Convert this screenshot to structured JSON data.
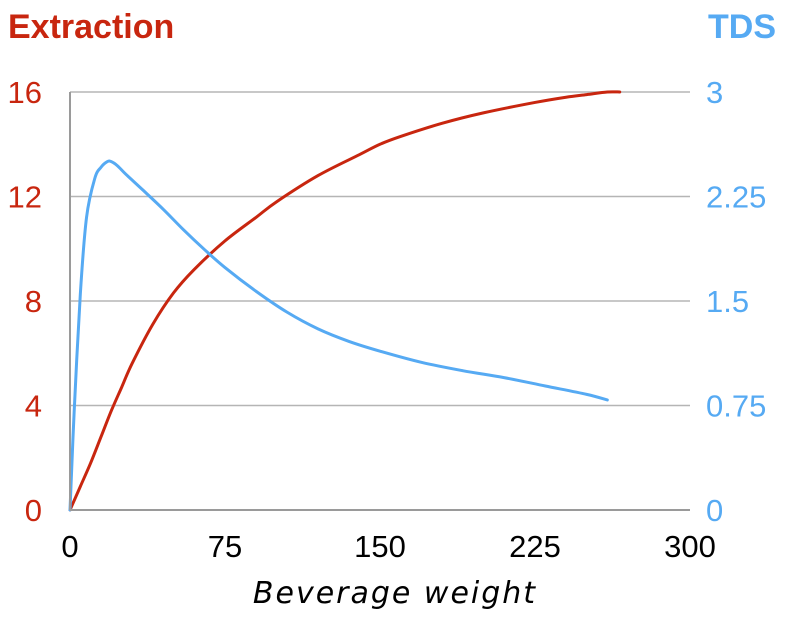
{
  "chart_data": {
    "type": "line",
    "x": [
      0,
      5,
      10,
      15,
      20,
      25,
      30,
      40,
      50,
      60,
      75,
      90,
      100,
      120,
      140,
      150,
      160,
      180,
      200,
      225,
      240,
      250,
      260,
      266
    ],
    "series": [
      {
        "name": "Extraction",
        "axis": "left",
        "color": "#c8260f",
        "x": [
          0,
          5,
          10,
          15,
          20,
          25,
          30,
          40,
          50,
          60,
          75,
          90,
          100,
          120,
          140,
          150,
          160,
          180,
          200,
          225,
          240,
          250,
          260,
          266
        ],
        "values": [
          0,
          0.9,
          1.8,
          2.8,
          3.8,
          4.7,
          5.6,
          7.1,
          8.3,
          9.2,
          10.3,
          11.2,
          11.8,
          12.8,
          13.6,
          14.0,
          14.3,
          14.8,
          15.2,
          15.6,
          15.8,
          15.9,
          16.0,
          16.0
        ]
      },
      {
        "name": "TDS",
        "axis": "right",
        "color": "#56aaf3",
        "x": [
          0,
          2,
          5,
          8,
          12,
          15,
          18,
          20,
          23,
          27,
          35,
          45,
          55,
          65,
          75,
          90,
          105,
          120,
          135,
          150,
          170,
          190,
          210,
          230,
          250,
          260
        ],
        "values": [
          0,
          0.7,
          1.55,
          2.1,
          2.38,
          2.46,
          2.5,
          2.5,
          2.47,
          2.41,
          2.3,
          2.16,
          2.01,
          1.87,
          1.74,
          1.57,
          1.42,
          1.3,
          1.21,
          1.14,
          1.06,
          1.0,
          0.95,
          0.89,
          0.83,
          0.79
        ]
      }
    ],
    "title_left": "Extraction",
    "title_right": "TDS",
    "xlabel": "Beverage weight",
    "xlim": [
      0,
      300
    ],
    "ylim_left": [
      0,
      16
    ],
    "ylim_right": [
      0,
      3
    ],
    "x_ticks": [
      "0",
      "75",
      "150",
      "225",
      "300"
    ],
    "y_ticks_left": [
      "0",
      "4",
      "8",
      "12",
      "16"
    ],
    "y_ticks_right": [
      "0",
      "0.75",
      "1.5",
      "2.25",
      "3"
    ],
    "grid": true
  }
}
